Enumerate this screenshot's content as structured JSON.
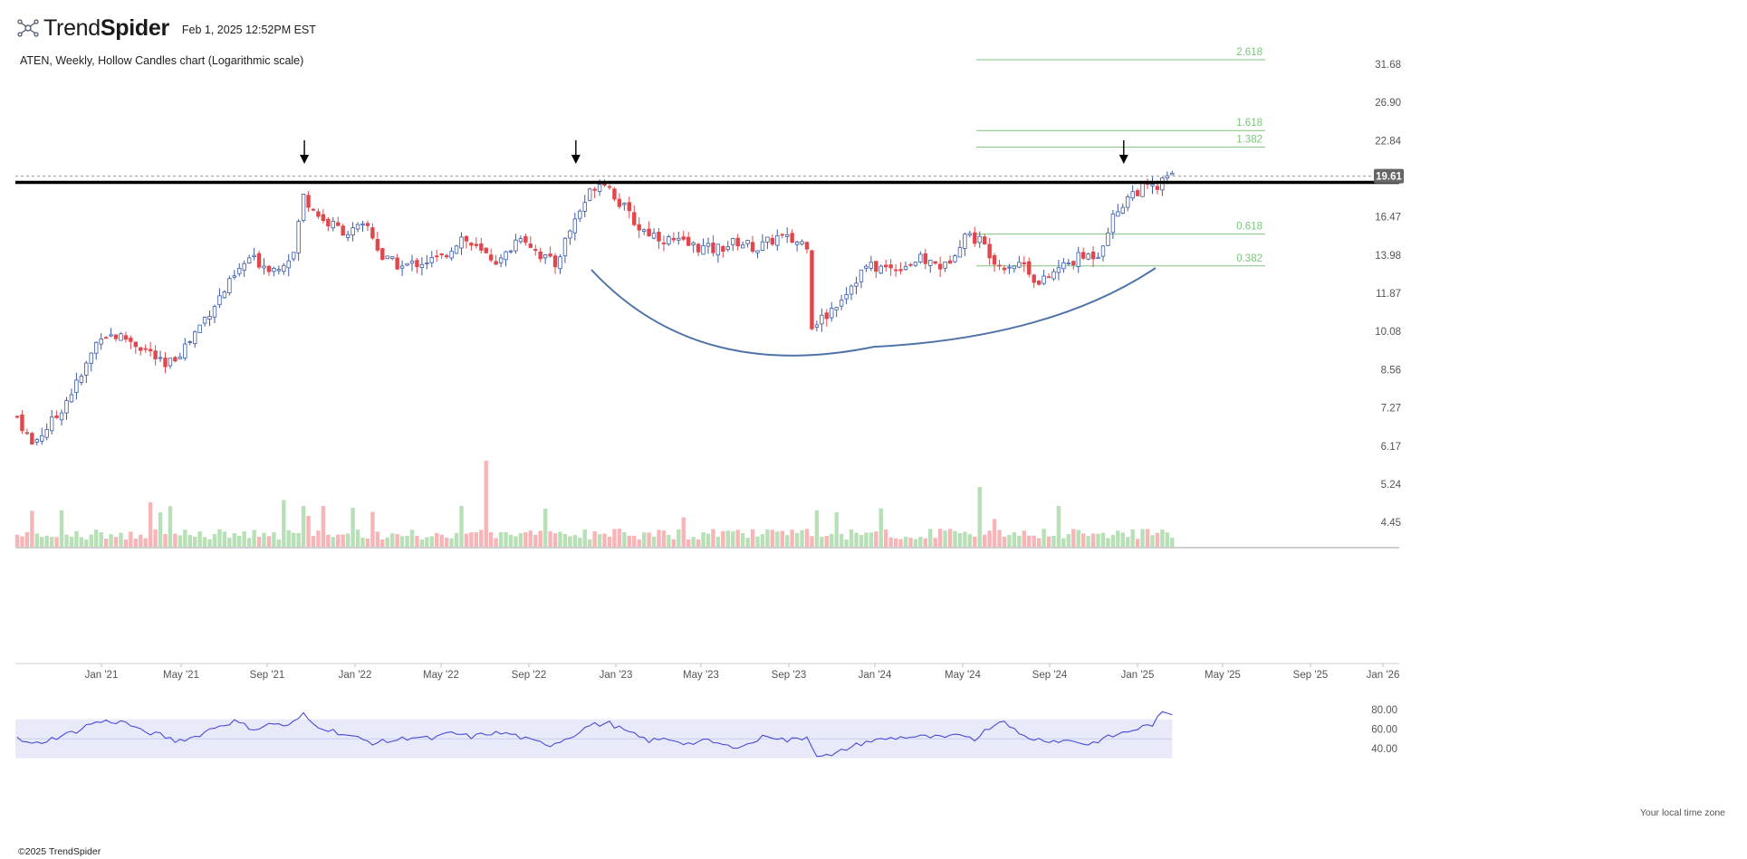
{
  "header": {
    "brand_light": "Trend",
    "brand_bold": "Spider",
    "timestamp": "Feb 1, 2025 12:52PM EST",
    "subtitle": "ATEN, Weekly, Hollow Candles chart (Logarithmic scale)"
  },
  "footer": {
    "copyright": "©2025 TrendSpider",
    "timezone": "Your local time zone"
  },
  "colors": {
    "up": "#3a5ba8",
    "down": "#e0474c",
    "vol_up": "#b7e0b7",
    "vol_down": "#f7b5b8",
    "fib": "#7dc47d",
    "rsi_line": "#4a4ad6",
    "rsi_band": "#e8eaf9",
    "resistance": "#000000",
    "arc": "#4f73a8",
    "price_tag": "#666666"
  },
  "chart_data": {
    "type": "candlestick",
    "ticker": "ATEN",
    "interval": "Weekly",
    "scale": "log",
    "last_price": "19.61",
    "price_axis_ticks": [
      "31.68",
      "26.90",
      "22.84",
      "19.61",
      "16.47",
      "13.98",
      "11.87",
      "10.08",
      "8.56",
      "7.27",
      "6.17",
      "5.24",
      "4.45"
    ],
    "x_axis_ticks": [
      "Jan '21",
      "May '21",
      "Sep '21",
      "Jan '22",
      "May '22",
      "Sep '22",
      "Jan '23",
      "May '23",
      "Sep '23",
      "Jan '24",
      "May '24",
      "Sep '24",
      "Jan '25",
      "May '25",
      "Sep '25",
      "Jan '26"
    ],
    "resistance_level": 19.1,
    "fib_levels": [
      {
        "label": "2.618",
        "price": 32.3
      },
      {
        "label": "1.618",
        "price": 23.85
      },
      {
        "label": "1.382",
        "price": 22.2
      },
      {
        "label": "0.618",
        "price": 15.3
      },
      {
        "label": "0.382",
        "price": 13.35
      }
    ],
    "markers": [
      {
        "date": "Nov '21",
        "type": "down-arrow"
      },
      {
        "date": "Nov '22",
        "type": "down-arrow"
      },
      {
        "date": "Dec '24",
        "type": "down-arrow"
      }
    ],
    "rounding_bottom": {
      "start": "Dec '22",
      "low": 9.55,
      "end": "Feb '25"
    },
    "price_anchors": [
      [
        0,
        7.0
      ],
      [
        3,
        6.2
      ],
      [
        8,
        7.0
      ],
      [
        13,
        8.3
      ],
      [
        17,
        10.0
      ],
      [
        22,
        9.8
      ],
      [
        27,
        9.2
      ],
      [
        30,
        8.6
      ],
      [
        35,
        9.7
      ],
      [
        42,
        12.0
      ],
      [
        47,
        13.8
      ],
      [
        52,
        13.2
      ],
      [
        56,
        14.1
      ],
      [
        58,
        18.0
      ],
      [
        62,
        16.2
      ],
      [
        67,
        15.4
      ],
      [
        71,
        15.8
      ],
      [
        74,
        13.8
      ],
      [
        78,
        13.3
      ],
      [
        82,
        13.6
      ],
      [
        86,
        13.8
      ],
      [
        90,
        15.1
      ],
      [
        94,
        14.1
      ],
      [
        98,
        13.6
      ],
      [
        102,
        15.3
      ],
      [
        106,
        14.0
      ],
      [
        109,
        13.4
      ],
      [
        113,
        16.3
      ],
      [
        117,
        18.9
      ],
      [
        119,
        19.3
      ],
      [
        122,
        17.5
      ],
      [
        126,
        15.7
      ],
      [
        131,
        15.0
      ],
      [
        136,
        14.6
      ],
      [
        141,
        14.3
      ],
      [
        146,
        14.8
      ],
      [
        150,
        14.4
      ],
      [
        154,
        15.1
      ],
      [
        158,
        14.8
      ],
      [
        160,
        14.7
      ],
      [
        161,
        10.4
      ],
      [
        164,
        10.8
      ],
      [
        168,
        12.0
      ],
      [
        172,
        13.3
      ],
      [
        177,
        13.2
      ],
      [
        183,
        13.7
      ],
      [
        188,
        13.3
      ],
      [
        192,
        15.3
      ],
      [
        195,
        14.9
      ],
      [
        199,
        13.4
      ],
      [
        204,
        13.5
      ],
      [
        207,
        12.3
      ],
      [
        211,
        13.2
      ],
      [
        215,
        13.8
      ],
      [
        219,
        14.1
      ],
      [
        222,
        16.4
      ],
      [
        225,
        18.0
      ],
      [
        228,
        18.7
      ],
      [
        231,
        18.6
      ],
      [
        233,
        19.6
      ]
    ],
    "rsi": {
      "ticks": [
        "80.00",
        "60.00",
        "40.00"
      ],
      "band": [
        30,
        70
      ],
      "anchors": [
        [
          0,
          50
        ],
        [
          3,
          44
        ],
        [
          7,
          50
        ],
        [
          12,
          58
        ],
        [
          15,
          66
        ],
        [
          18,
          68
        ],
        [
          22,
          67
        ],
        [
          25,
          58
        ],
        [
          29,
          54
        ],
        [
          32,
          48
        ],
        [
          36,
          52
        ],
        [
          40,
          62
        ],
        [
          44,
          68
        ],
        [
          48,
          60
        ],
        [
          52,
          66
        ],
        [
          55,
          63
        ],
        [
          58,
          75
        ],
        [
          60,
          65
        ],
        [
          64,
          58
        ],
        [
          68,
          52
        ],
        [
          72,
          46
        ],
        [
          76,
          48
        ],
        [
          80,
          52
        ],
        [
          84,
          50
        ],
        [
          88,
          56
        ],
        [
          92,
          52
        ],
        [
          96,
          56
        ],
        [
          100,
          55
        ],
        [
          104,
          48
        ],
        [
          108,
          44
        ],
        [
          112,
          52
        ],
        [
          116,
          64
        ],
        [
          120,
          66
        ],
        [
          124,
          56
        ],
        [
          128,
          48
        ],
        [
          132,
          50
        ],
        [
          136,
          45
        ],
        [
          140,
          48
        ],
        [
          144,
          42
        ],
        [
          148,
          44
        ],
        [
          152,
          54
        ],
        [
          156,
          48
        ],
        [
          160,
          52
        ],
        [
          162,
          34
        ],
        [
          165,
          32
        ],
        [
          168,
          40
        ],
        [
          172,
          47
        ],
        [
          176,
          50
        ],
        [
          180,
          52
        ],
        [
          184,
          52
        ],
        [
          188,
          51
        ],
        [
          192,
          54
        ],
        [
          194,
          50
        ],
        [
          197,
          62
        ],
        [
          200,
          70
        ],
        [
          203,
          54
        ],
        [
          206,
          50
        ],
        [
          210,
          48
        ],
        [
          214,
          48
        ],
        [
          217,
          44
        ],
        [
          220,
          50
        ],
        [
          224,
          56
        ],
        [
          228,
          62
        ],
        [
          230,
          65
        ],
        [
          232,
          76
        ],
        [
          234,
          76
        ]
      ]
    }
  }
}
